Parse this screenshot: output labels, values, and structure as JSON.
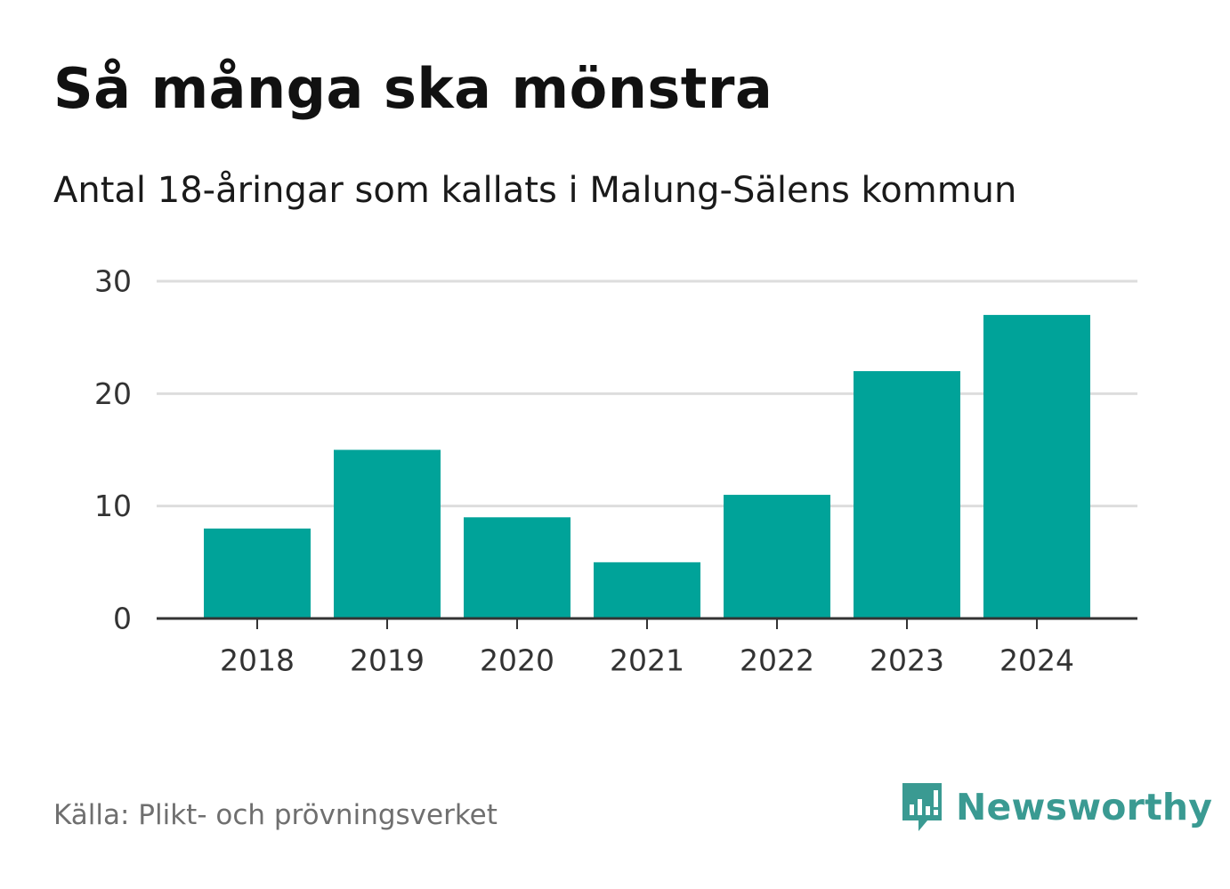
{
  "header": {
    "title": "Så många ska mönstra",
    "subtitle": "Antal 18-åringar som kallats i Malung-Sälens kommun"
  },
  "footer": {
    "source": "Källa: Plikt- och prövningsverket",
    "brand": "Newsworthy",
    "brand_icon": "newsworthy-logo-icon"
  },
  "colors": {
    "bar": "#00a399",
    "grid": "#dddddd",
    "axis": "#333333",
    "brand": "#3a9a92"
  },
  "chart_data": {
    "type": "bar",
    "title": "Så många ska mönstra",
    "subtitle": "Antal 18-åringar som kallats i Malung-Sälens kommun",
    "xlabel": "",
    "ylabel": "",
    "categories": [
      "2018",
      "2019",
      "2020",
      "2021",
      "2022",
      "2023",
      "2024"
    ],
    "values": [
      8,
      15,
      9,
      5,
      11,
      22,
      27
    ],
    "ylim": [
      0,
      30
    ],
    "yticks": [
      0,
      10,
      20,
      30
    ],
    "grid": true,
    "legend": "none"
  }
}
